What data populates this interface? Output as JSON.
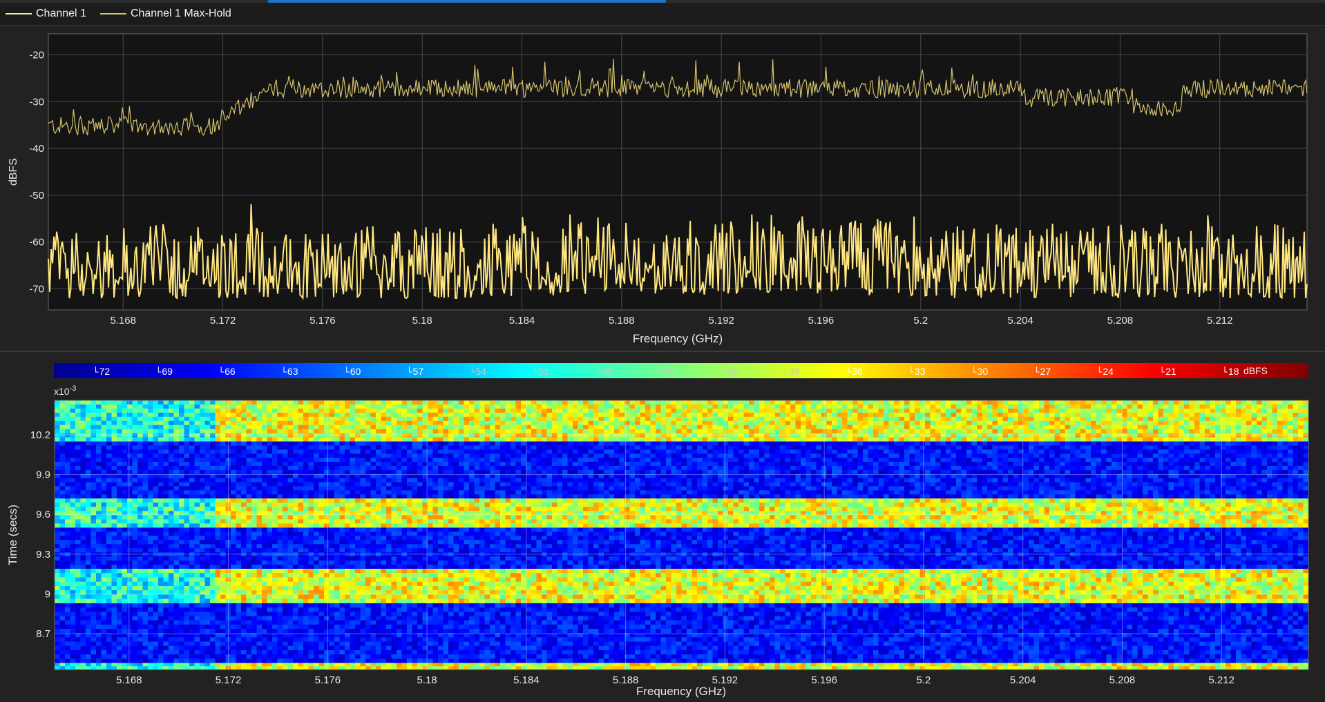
{
  "legend": {
    "items": [
      {
        "label": "Channel 1",
        "color": "#f2e7a3"
      },
      {
        "label": "Channel 1 Max-Hold",
        "color": "#d9c36a"
      }
    ]
  },
  "colors": {
    "background": "#222222",
    "plot_bg": "#141414",
    "grid": "#4a4a4a",
    "trace": "#ffe680",
    "maxhold": "#d6c46e"
  },
  "chart_data": [
    {
      "type": "line",
      "ylabel": "dBFS",
      "xlabel": "Frequency (GHz)",
      "xlim": [
        5.165,
        5.2155
      ],
      "ylim": [
        -74.5,
        -15.5
      ],
      "xticks": [
        "5.168",
        "5.172",
        "5.176",
        "5.18",
        "5.184",
        "5.188",
        "5.192",
        "5.196",
        "5.2",
        "5.204",
        "5.208",
        "5.212"
      ],
      "yticks": [
        "-20",
        "-30",
        "-40",
        "-50",
        "-60",
        "-70"
      ],
      "grid": true,
      "series": [
        {
          "name": "Channel 1",
          "style": "spectrum",
          "typical_range": [
            -75,
            -49
          ]
        },
        {
          "name": "Channel 1 Max-Hold",
          "style": "max-hold",
          "typical_range": [
            -39,
            -19
          ]
        }
      ]
    },
    {
      "type": "heatmap",
      "title": "",
      "xlabel": "Frequency (GHz)",
      "ylabel": "Time (secs)",
      "y_multiplier": "x10",
      "y_multiplier_exp": "-3",
      "xlim": [
        5.165,
        5.2155
      ],
      "ylim": [
        8.43,
        10.46
      ],
      "xticks": [
        "5.168",
        "5.172",
        "5.176",
        "5.18",
        "5.184",
        "5.188",
        "5.192",
        "5.196",
        "5.2",
        "5.204",
        "5.208",
        "5.212"
      ],
      "yticks": [
        "10.2",
        "9.9",
        "9.6",
        "9.3",
        "9",
        "8.7"
      ],
      "colorbar": {
        "unit": "dBFS",
        "range": [
          -74,
          -14
        ],
        "ticks": [
          "-72",
          "-69",
          "-66",
          "-63",
          "-60",
          "-57",
          "-54",
          "-51",
          "-48",
          "-45",
          "-42",
          "-39",
          "-36",
          "-33",
          "-30",
          "-27",
          "-24",
          "-21",
          "-18"
        ]
      },
      "bands": [
        {
          "t_start": 10.15,
          "t_end": 10.46,
          "level": "high"
        },
        {
          "t_start": 9.72,
          "t_end": 10.15,
          "level": "low"
        },
        {
          "t_start": 9.5,
          "t_end": 9.72,
          "level": "high"
        },
        {
          "t_start": 9.19,
          "t_end": 9.5,
          "level": "low"
        },
        {
          "t_start": 8.93,
          "t_end": 9.19,
          "level": "high"
        },
        {
          "t_start": 8.48,
          "t_end": 8.93,
          "level": "low"
        },
        {
          "t_start": 8.43,
          "t_end": 8.48,
          "level": "high"
        }
      ]
    }
  ]
}
